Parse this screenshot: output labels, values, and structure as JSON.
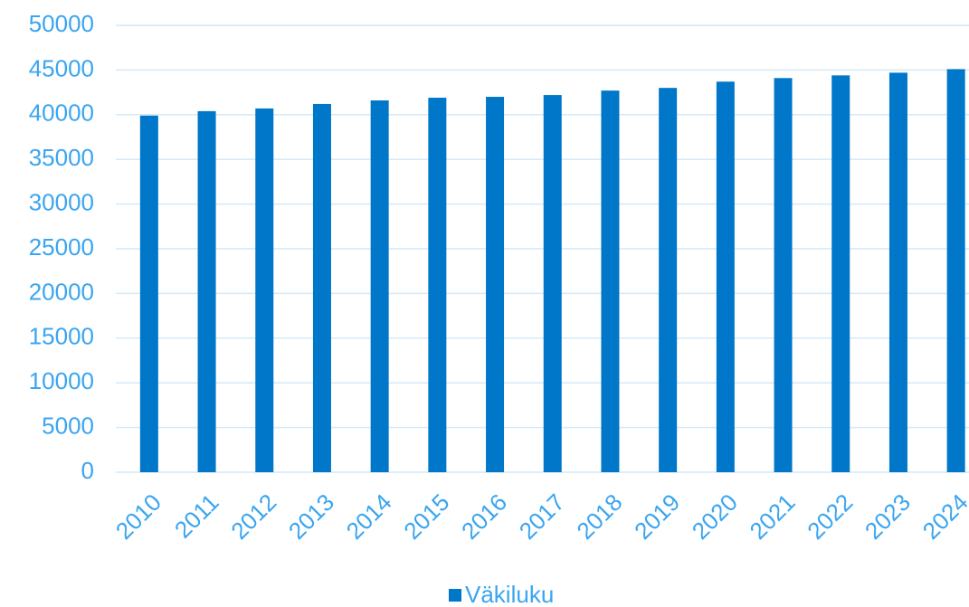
{
  "chart_data": {
    "type": "bar",
    "categories": [
      "2010",
      "2011",
      "2012",
      "2013",
      "2014",
      "2015",
      "2016",
      "2017",
      "2018",
      "2019",
      "2020",
      "2021",
      "2022",
      "2023",
      "2024"
    ],
    "series": [
      {
        "name": "Väkiluku",
        "color": "#0077c8",
        "values": [
          39900,
          40400,
          40700,
          41200,
          41600,
          41900,
          42000,
          42200,
          42700,
          43000,
          43700,
          44100,
          44400,
          44700,
          45100
        ]
      }
    ],
    "ylim": [
      0,
      50000
    ],
    "yticks": [
      0,
      5000,
      10000,
      15000,
      20000,
      25000,
      30000,
      35000,
      40000,
      45000,
      50000
    ],
    "grid": true,
    "legend": "bottom"
  }
}
